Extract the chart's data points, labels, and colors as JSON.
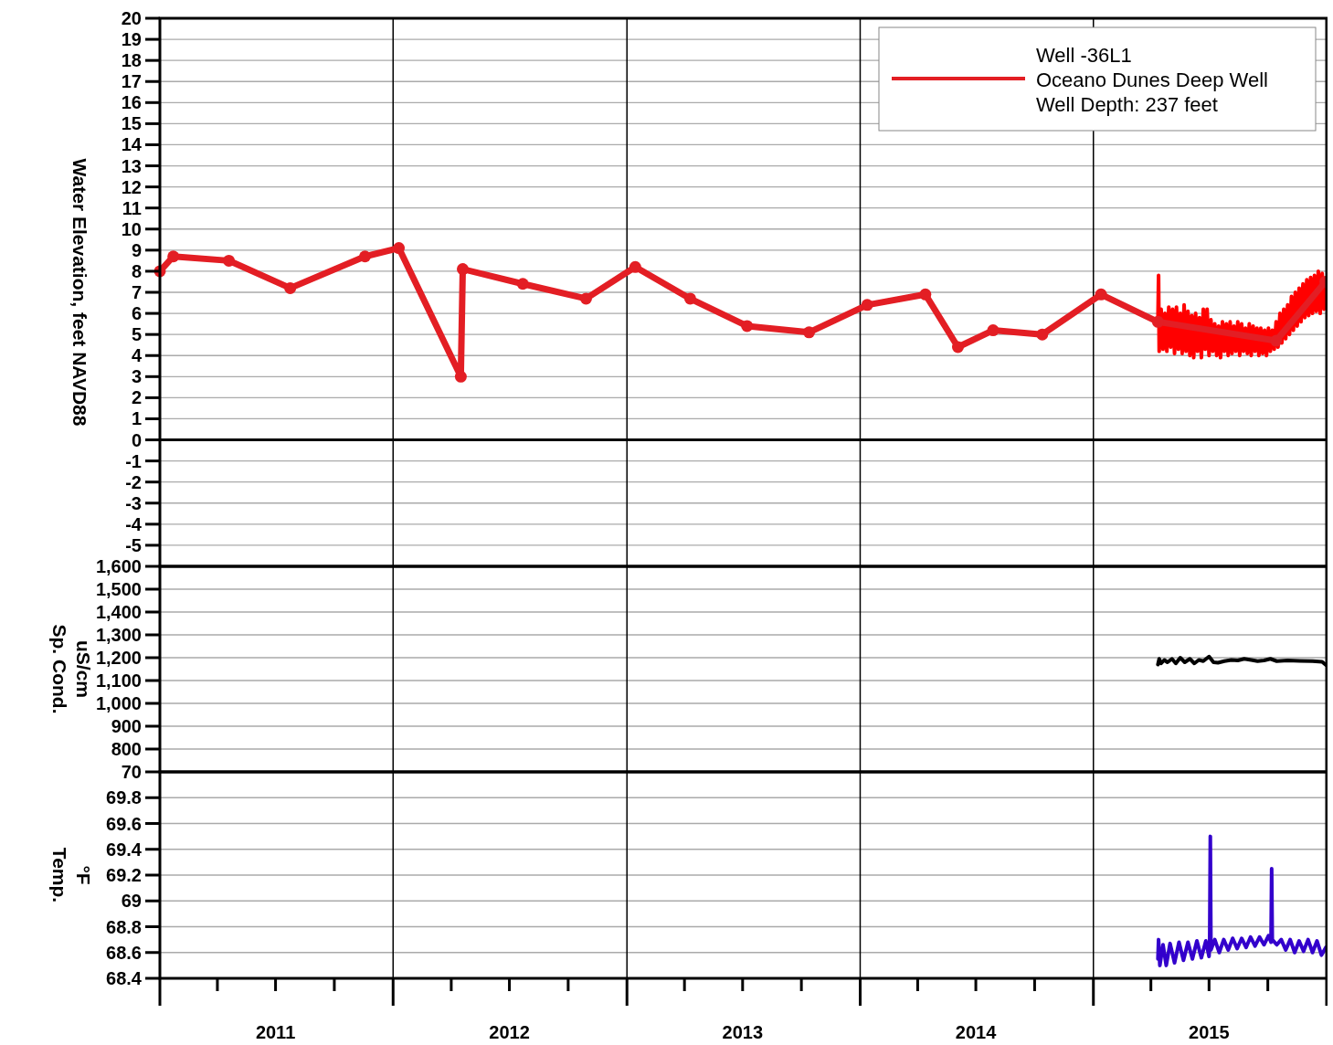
{
  "chart_data": [
    {
      "type": "line",
      "ylabel": "Water Elevation, feet NAVD88",
      "xlim": [
        "2011-01-01",
        "2016-01-01"
      ],
      "xticks": [
        {
          "value": "2011-01-01",
          "label": null
        },
        {
          "value": "2012-01-01",
          "label": null
        },
        {
          "value": "2013-01-01",
          "label": null
        },
        {
          "value": "2014-01-01",
          "label": null
        },
        {
          "value": "2015-01-01",
          "label": null
        },
        {
          "value": "2016-01-01",
          "label": null
        }
      ],
      "ylim": [
        -6,
        20
      ],
      "yticks": [
        -5,
        -4,
        -3,
        -2,
        -1,
        0,
        1,
        2,
        3,
        4,
        5,
        6,
        7,
        8,
        9,
        10,
        11,
        12,
        13,
        14,
        15,
        16,
        17,
        18,
        19,
        20
      ],
      "grid": true,
      "tick_labels": "y",
      "legend": "top right",
      "ref_lines": [
        {
          "axis": "y",
          "value": 0,
          "color": "#000000"
        }
      ],
      "series": [
        {
          "color": "#ff0000",
          "marker": "none",
          "x": [
            "2015-04-12",
            "2015-04-13",
            "2015-04-14",
            "2015-04-17",
            "2015-04-20",
            "2015-04-23",
            "2015-04-26",
            "2015-04-29",
            "2015-05-02",
            "2015-05-05",
            "2015-05-08",
            "2015-05-11",
            "2015-05-14",
            "2015-05-17",
            "2015-05-20",
            "2015-05-23",
            "2015-05-26",
            "2015-05-29",
            "2015-06-01",
            "2015-06-04",
            "2015-06-07",
            "2015-06-10",
            "2015-06-13",
            "2015-06-16",
            "2015-06-19",
            "2015-06-22",
            "2015-06-25",
            "2015-06-28",
            "2015-07-01",
            "2015-07-04",
            "2015-07-07",
            "2015-07-10",
            "2015-07-13",
            "2015-07-16",
            "2015-07-19",
            "2015-07-22",
            "2015-07-25",
            "2015-07-28",
            "2015-07-31",
            "2015-08-03",
            "2015-08-06",
            "2015-08-09",
            "2015-08-12",
            "2015-08-15",
            "2015-08-18",
            "2015-08-21",
            "2015-08-24",
            "2015-08-27",
            "2015-08-30",
            "2015-09-02",
            "2015-09-05",
            "2015-09-08",
            "2015-09-11",
            "2015-09-14",
            "2015-09-17",
            "2015-09-20",
            "2015-09-23",
            "2015-09-26",
            "2015-09-29",
            "2015-10-02",
            "2015-10-05",
            "2015-10-08",
            "2015-10-11",
            "2015-10-14",
            "2015-10-17",
            "2015-10-20",
            "2015-10-23",
            "2015-10-26",
            "2015-10-29",
            "2015-11-01",
            "2015-11-04",
            "2015-11-07",
            "2015-11-10",
            "2015-11-13",
            "2015-11-16",
            "2015-11-19",
            "2015-11-22",
            "2015-11-25",
            "2015-11-28",
            "2015-12-01",
            "2015-12-04",
            "2015-12-07",
            "2015-12-10",
            "2015-12-13",
            "2015-12-16",
            "2015-12-19",
            "2015-12-22",
            "2015-12-25",
            "2015-12-28",
            "2015-12-31"
          ],
          "values": [
            5.6,
            7.8,
            4.2,
            6.2,
            4.3,
            6.0,
            4.2,
            6.3,
            4.4,
            6.2,
            4.1,
            6.3,
            4.3,
            6.0,
            4.1,
            6.4,
            4.2,
            6.1,
            4.0,
            5.9,
            3.9,
            6.0,
            4.2,
            5.8,
            3.9,
            6.2,
            4.3,
            6.2,
            4.0,
            5.7,
            4.2,
            5.5,
            4.0,
            5.4,
            3.9,
            5.6,
            4.2,
            5.5,
            4.0,
            5.6,
            4.1,
            5.4,
            4.2,
            5.6,
            4.0,
            5.5,
            4.2,
            5.3,
            4.1,
            5.5,
            4.0,
            5.4,
            4.2,
            5.3,
            4.0,
            5.3,
            4.1,
            5.2,
            4.0,
            5.3,
            4.2,
            5.2,
            4.3,
            5.6,
            4.4,
            6.0,
            4.6,
            6.2,
            4.8,
            6.4,
            5.0,
            6.8,
            5.2,
            7.0,
            5.4,
            7.2,
            5.6,
            7.4,
            5.8,
            7.6,
            5.9,
            7.7,
            6.0,
            7.8,
            6.1,
            8.0,
            6.0,
            7.9,
            6.2,
            7.6
          ]
        },
        {
          "name": "Well -36L1\nOceano Dunes Deep Well\nWell Depth: 237 feet",
          "color": "#e31e24",
          "marker": "circle",
          "x": [
            "2011-01-01",
            "2011-01-22",
            "2011-04-19",
            "2011-07-24",
            "2011-11-18",
            "2012-01-10",
            "2012-04-16",
            "2012-04-19",
            "2012-07-22",
            "2012-10-29",
            "2013-01-14",
            "2013-04-10",
            "2013-07-08",
            "2013-10-13",
            "2014-01-12",
            "2014-04-13",
            "2014-06-03",
            "2014-07-28",
            "2014-10-13",
            "2015-01-13",
            "2015-04-12",
            "2015-10-14",
            "2015-12-30"
          ],
          "values": [
            8.0,
            8.7,
            8.5,
            7.2,
            8.7,
            9.1,
            3.0,
            8.1,
            7.4,
            6.7,
            8.2,
            6.7,
            5.4,
            5.1,
            6.4,
            6.9,
            4.4,
            5.2,
            5.0,
            6.9,
            5.6,
            4.7,
            7.5
          ]
        }
      ]
    },
    {
      "type": "line",
      "ylabel": "Sp. Cond.\nuS/cm",
      "xlim": [
        "2011-01-01",
        "2016-01-01"
      ],
      "xticks": [
        {
          "value": "2011-01-01",
          "label": null
        },
        {
          "value": "2012-01-01",
          "label": null
        },
        {
          "value": "2013-01-01",
          "label": null
        },
        {
          "value": "2014-01-01",
          "label": null
        },
        {
          "value": "2015-01-01",
          "label": null
        },
        {
          "value": "2016-01-01",
          "label": null
        }
      ],
      "ylim": [
        700,
        1600
      ],
      "yticks": [
        {
          "value": 800,
          "label": "800"
        },
        {
          "value": 900,
          "label": "900"
        },
        {
          "value": 1000,
          "label": "1,000"
        },
        {
          "value": 1100,
          "label": "1,100"
        },
        {
          "value": 1200,
          "label": "1,200"
        },
        {
          "value": 1300,
          "label": "1,300"
        },
        {
          "value": 1400,
          "label": "1,400"
        },
        {
          "value": 1500,
          "label": "1,500"
        },
        {
          "value": 1600,
          "label": "1,600"
        }
      ],
      "grid": true,
      "tick_labels": "y",
      "series": [
        {
          "color": "#000000",
          "marker": "none",
          "x": [
            "2015-04-12",
            "2015-04-14",
            "2015-04-17",
            "2015-04-22",
            "2015-04-27",
            "2015-05-04",
            "2015-05-10",
            "2015-05-17",
            "2015-05-24",
            "2015-06-01",
            "2015-06-08",
            "2015-06-15",
            "2015-06-22",
            "2015-07-01",
            "2015-07-08",
            "2015-07-15",
            "2015-07-25",
            "2015-08-05",
            "2015-08-15",
            "2015-08-25",
            "2015-09-05",
            "2015-09-15",
            "2015-09-25",
            "2015-10-05",
            "2015-10-15",
            "2015-11-01",
            "2015-11-20",
            "2015-12-10",
            "2015-12-25",
            "2015-12-31"
          ],
          "values": [
            1170,
            1195,
            1175,
            1190,
            1180,
            1195,
            1175,
            1200,
            1180,
            1195,
            1175,
            1190,
            1185,
            1205,
            1180,
            1178,
            1185,
            1190,
            1188,
            1195,
            1190,
            1185,
            1188,
            1195,
            1185,
            1188,
            1186,
            1185,
            1182,
            1168
          ]
        }
      ]
    },
    {
      "type": "line",
      "ylabel": "Temp.\n°F",
      "xlim": [
        "2011-01-01",
        "2016-01-01"
      ],
      "xticks": [
        {
          "value": "2011-01-01",
          "label": null
        },
        {
          "value": "2011-04-01",
          "label": null
        },
        {
          "value": "2011-07-01",
          "label": "2011"
        },
        {
          "value": "2011-10-01",
          "label": null
        },
        {
          "value": "2012-01-01",
          "label": null
        },
        {
          "value": "2012-04-01",
          "label": null
        },
        {
          "value": "2012-07-01",
          "label": "2012"
        },
        {
          "value": "2012-10-01",
          "label": null
        },
        {
          "value": "2013-01-01",
          "label": null
        },
        {
          "value": "2013-04-01",
          "label": null
        },
        {
          "value": "2013-07-01",
          "label": "2013"
        },
        {
          "value": "2013-10-01",
          "label": null
        },
        {
          "value": "2014-01-01",
          "label": null
        },
        {
          "value": "2014-04-01",
          "label": null
        },
        {
          "value": "2014-07-01",
          "label": "2014"
        },
        {
          "value": "2014-10-01",
          "label": null
        },
        {
          "value": "2015-01-01",
          "label": null
        },
        {
          "value": "2015-04-01",
          "label": null
        },
        {
          "value": "2015-07-01",
          "label": "2015"
        },
        {
          "value": "2015-10-01",
          "label": null
        },
        {
          "value": "2016-01-01",
          "label": null
        }
      ],
      "ylim": [
        68.4,
        70
      ],
      "yticks": [
        68.4,
        68.6,
        68.8,
        69,
        69.2,
        69.4,
        69.6,
        69.8,
        70
      ],
      "grid": true,
      "series": [
        {
          "color": "#3300cc",
          "marker": "none",
          "x": [
            "2015-04-12",
            "2015-04-13",
            "2015-04-15",
            "2015-04-20",
            "2015-04-25",
            "2015-05-01",
            "2015-05-08",
            "2015-05-15",
            "2015-05-22",
            "2015-05-29",
            "2015-06-05",
            "2015-06-12",
            "2015-06-19",
            "2015-06-26",
            "2015-07-01",
            "2015-07-02",
            "2015-07-03",
            "2015-07-04",
            "2015-07-10",
            "2015-07-17",
            "2015-07-24",
            "2015-07-31",
            "2015-08-07",
            "2015-08-14",
            "2015-08-21",
            "2015-08-28",
            "2015-09-04",
            "2015-09-11",
            "2015-09-18",
            "2015-09-25",
            "2015-10-02",
            "2015-10-06",
            "2015-10-07",
            "2015-10-08",
            "2015-10-15",
            "2015-10-22",
            "2015-10-29",
            "2015-11-05",
            "2015-11-12",
            "2015-11-19",
            "2015-11-26",
            "2015-12-03",
            "2015-12-10",
            "2015-12-17",
            "2015-12-24",
            "2015-12-31"
          ],
          "values": [
            68.55,
            68.7,
            68.5,
            68.66,
            68.5,
            68.67,
            68.52,
            68.68,
            68.54,
            68.68,
            68.55,
            68.69,
            68.56,
            68.69,
            68.57,
            68.68,
            69.5,
            68.62,
            68.7,
            68.6,
            68.7,
            68.62,
            68.71,
            68.63,
            68.71,
            68.64,
            68.72,
            68.65,
            68.72,
            68.66,
            68.73,
            68.68,
            69.25,
            68.7,
            68.66,
            68.7,
            68.62,
            68.7,
            68.6,
            68.69,
            68.61,
            68.7,
            68.6,
            68.69,
            68.58,
            68.64
          ]
        }
      ]
    }
  ]
}
